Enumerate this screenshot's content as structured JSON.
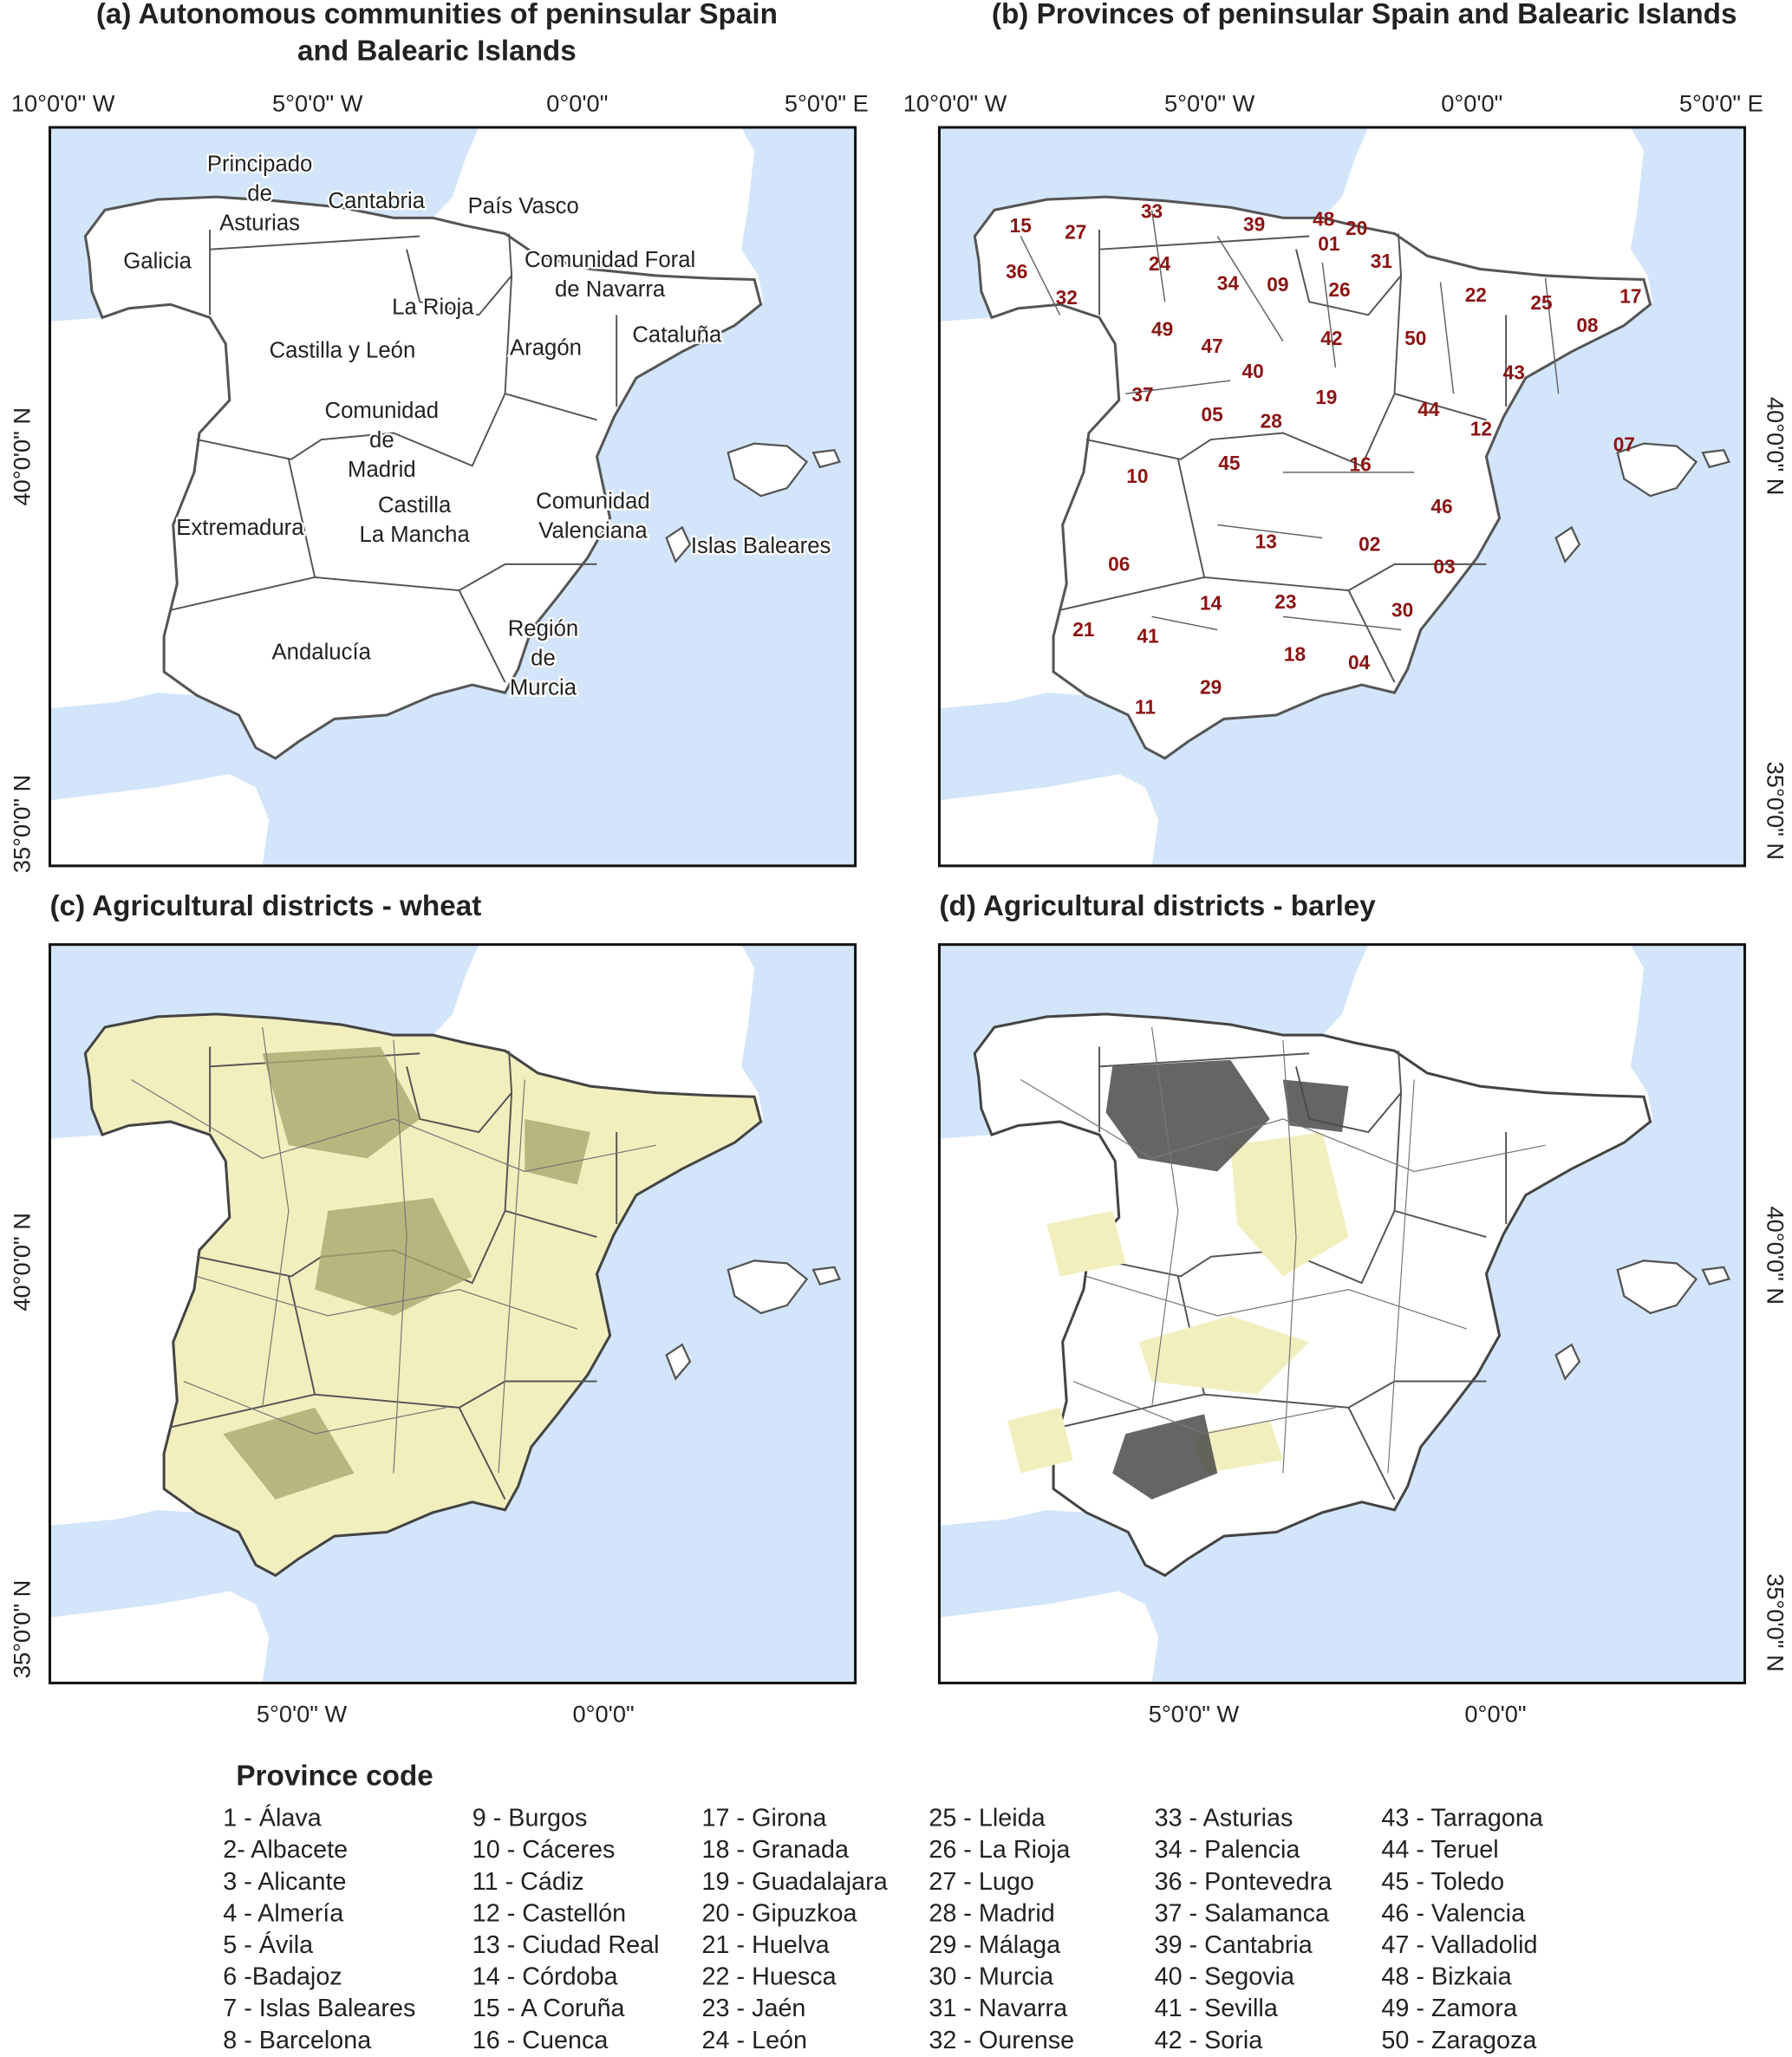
{
  "panels": [
    {
      "title": [
        "(a) Autonomous communities of peninsular Spain",
        "and Balearic Islands"
      ],
      "lon_labels": [
        "10°0'0\" W",
        "5°0'0\" W",
        "0°0'0\"",
        "5°0'0\" E"
      ],
      "lat_labels": [
        "40°0'0\" N",
        "35°0'0\" N"
      ],
      "regions": [
        {
          "lines": [
            "Principado",
            "de",
            "Asturias"
          ]
        },
        {
          "lines": [
            "Cantabria"
          ]
        },
        {
          "lines": [
            "País Vasco"
          ]
        },
        {
          "lines": [
            "Galicia"
          ]
        },
        {
          "lines": [
            "Comunidad Foral",
            "de Navarra"
          ]
        },
        {
          "lines": [
            "La Rioja"
          ]
        },
        {
          "lines": [
            "Castilla y León"
          ]
        },
        {
          "lines": [
            "Aragón"
          ]
        },
        {
          "lines": [
            "Cataluña"
          ]
        },
        {
          "lines": [
            "Comunidad",
            "de",
            "Madrid"
          ]
        },
        {
          "lines": [
            "Extremadura"
          ]
        },
        {
          "lines": [
            "Castilla",
            "La Mancha"
          ]
        },
        {
          "lines": [
            "Comunidad",
            "Valenciana"
          ]
        },
        {
          "lines": [
            "Islas Baleares"
          ]
        },
        {
          "lines": [
            "Andalucía"
          ]
        },
        {
          "lines": [
            "Región",
            "de",
            "Murcia"
          ]
        }
      ]
    },
    {
      "title": [
        "(b) Provinces of peninsular Spain and Balearic Islands"
      ],
      "lon_labels": [
        "10°0'0\" W",
        "5°0'0\" W",
        "0°0'0\"",
        "5°0'0\" E"
      ],
      "lat_labels": [
        "40°0'0\" N",
        "35°0'0\" N"
      ],
      "codes": [
        "15",
        "27",
        "33",
        "39",
        "48",
        "20",
        "01",
        "31",
        "36",
        "32",
        "24",
        "34",
        "09",
        "26",
        "22",
        "25",
        "17",
        "08",
        "49",
        "47",
        "42",
        "50",
        "40",
        "43",
        "37",
        "05",
        "28",
        "19",
        "44",
        "12",
        "07",
        "10",
        "45",
        "16",
        "46",
        "13",
        "02",
        "03",
        "06",
        "14",
        "23",
        "30",
        "21",
        "41",
        "18",
        "04",
        "29",
        "11"
      ]
    },
    {
      "title": [
        "(c) Agricultural districts - wheat"
      ],
      "lon_labels": [
        "5°0'0\" W",
        "0°0'0\""
      ],
      "lat_labels": [
        "40°0'0\" N",
        "35°0'0\" N"
      ]
    },
    {
      "title": [
        "(d) Agricultural districts - barley"
      ],
      "lon_labels": [
        "5°0'0\" W",
        "0°0'0\""
      ],
      "lat_labels": [
        "40°0'0\" N",
        "35°0'0\" N"
      ]
    }
  ],
  "legend": {
    "title": "Province code",
    "entries": [
      "1 - Álava",
      "2- Albacete",
      "3 - Alicante",
      "4 - Almería",
      "5 - Ávila",
      "6 -Badajoz",
      "7 - Islas Baleares",
      "8 - Barcelona",
      "9 - Burgos",
      "10 - Cáceres",
      "11 - Cádiz",
      "12 - Castellón",
      "13 - Ciudad Real",
      "14 - Córdoba",
      "15 - A Coruña",
      "16 - Cuenca",
      "17 - Girona",
      "18 - Granada",
      "19 - Guadalajara",
      "20 - Gipuzkoa",
      "21 - Huelva",
      "22 - Huesca",
      "23 - Jaén",
      "24 - León",
      "25 - Lleida",
      "26 - La Rioja",
      "27 - Lugo",
      "28 - Madrid",
      "29 - Málaga",
      "30 - Murcia",
      "31 - Navarra",
      "32 - Ourense",
      "33 - Asturias",
      "34 - Palencia",
      "36 - Pontevedra",
      "37 - Salamanca",
      "39 - Cantabria",
      "40 - Segovia",
      "41 - Sevilla",
      "42 - Soria",
      "43 - Tarragona",
      "44 - Teruel",
      "45 - Toledo",
      "46 - Valencia",
      "47 - Valladolid",
      "48 - Bizkaia",
      "49 - Zamora",
      "50 - Zaragoza"
    ]
  }
}
